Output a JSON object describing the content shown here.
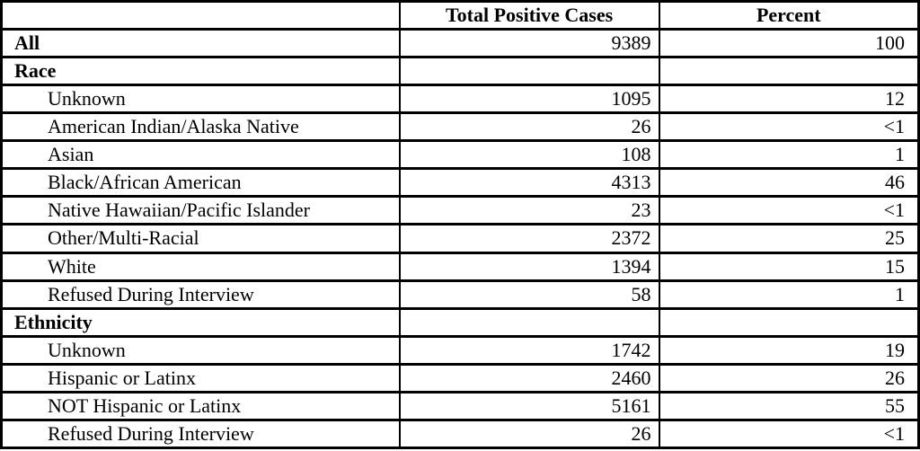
{
  "table": {
    "columns": [
      "",
      "Total Positive Cases",
      "Percent"
    ],
    "rows": [
      {
        "label": "All",
        "bold": true,
        "indent": false,
        "cases": "9389",
        "percent": "100"
      },
      {
        "label": "Race",
        "bold": true,
        "indent": false,
        "cases": "",
        "percent": ""
      },
      {
        "label": "Unknown",
        "bold": false,
        "indent": true,
        "cases": "1095",
        "percent": "12"
      },
      {
        "label": "American Indian/Alaska Native",
        "bold": false,
        "indent": true,
        "cases": "26",
        "percent": "<1"
      },
      {
        "label": "Asian",
        "bold": false,
        "indent": true,
        "cases": "108",
        "percent": "1"
      },
      {
        "label": "Black/African American",
        "bold": false,
        "indent": true,
        "cases": "4313",
        "percent": "46"
      },
      {
        "label": "Native Hawaiian/Pacific Islander",
        "bold": false,
        "indent": true,
        "cases": "23",
        "percent": "<1"
      },
      {
        "label": "Other/Multi-Racial",
        "bold": false,
        "indent": true,
        "cases": "2372",
        "percent": "25"
      },
      {
        "label": "White",
        "bold": false,
        "indent": true,
        "cases": "1394",
        "percent": "15"
      },
      {
        "label": "Refused During Interview",
        "bold": false,
        "indent": true,
        "cases": "58",
        "percent": "1"
      },
      {
        "label": "Ethnicity",
        "bold": true,
        "indent": false,
        "cases": "",
        "percent": ""
      },
      {
        "label": "Unknown",
        "bold": false,
        "indent": true,
        "cases": "1742",
        "percent": "19"
      },
      {
        "label": "Hispanic or Latinx",
        "bold": false,
        "indent": true,
        "cases": "2460",
        "percent": "26"
      },
      {
        "label": "NOT Hispanic or Latinx",
        "bold": false,
        "indent": true,
        "cases": "5161",
        "percent": "55"
      },
      {
        "label": "Refused During Interview",
        "bold": false,
        "indent": true,
        "cases": "26",
        "percent": "<1"
      }
    ]
  },
  "chart_data": {
    "type": "table",
    "title": "",
    "columns": [
      "",
      "Total Positive Cases",
      "Percent"
    ],
    "rows": [
      [
        "All",
        "9389",
        "100"
      ],
      [
        "Race",
        "",
        ""
      ],
      [
        "Unknown",
        "1095",
        "12"
      ],
      [
        "American Indian/Alaska Native",
        "26",
        "<1"
      ],
      [
        "Asian",
        "108",
        "1"
      ],
      [
        "Black/African American",
        "4313",
        "46"
      ],
      [
        "Native Hawaiian/Pacific Islander",
        "23",
        "<1"
      ],
      [
        "Other/Multi-Racial",
        "2372",
        "25"
      ],
      [
        "White",
        "1394",
        "15"
      ],
      [
        "Refused During Interview",
        "58",
        "1"
      ],
      [
        "Ethnicity",
        "",
        ""
      ],
      [
        "Unknown",
        "1742",
        "19"
      ],
      [
        "Hispanic or Latinx",
        "2460",
        "26"
      ],
      [
        "NOT Hispanic or Latinx",
        "5161",
        "55"
      ],
      [
        "Refused During Interview",
        "26",
        "<1"
      ]
    ],
    "notes": {
      "section_rows": [
        "All",
        "Race",
        "Ethnicity"
      ],
      "percent_less_than_one_symbol": "<1"
    }
  }
}
